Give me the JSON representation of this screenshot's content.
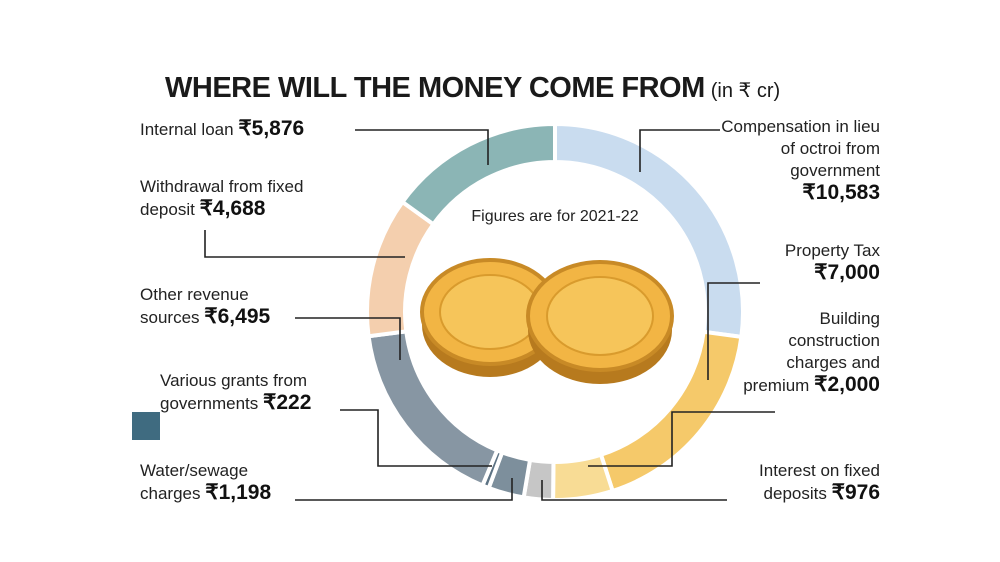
{
  "chart_data": {
    "type": "donut",
    "title": "WHERE WILL THE MONEY COME FROM",
    "subtitle": "(in ₹ cr)",
    "annotation": "Figures are for 2021-22",
    "categories": [
      "Compensation in lieu of octroi from government",
      "Property Tax",
      "Building construction charges and premium",
      "Interest on fixed deposits",
      "Water/sewage charges",
      "Various grants from governments",
      "Other revenue sources",
      "Withdrawal from fixed deposit",
      "Internal loan"
    ],
    "values": [
      10583,
      7000,
      2000,
      976,
      1198,
      222,
      6495,
      4688,
      5876
    ],
    "value_labels": [
      "₹10,583",
      "₹7,000",
      "₹2,000",
      "₹976",
      "₹1,198",
      "₹222",
      "₹6,495",
      "₹4,688",
      "₹5,876"
    ],
    "colors": [
      "#c9dcef",
      "#f5c96a",
      "#f8dc95",
      "#c6c6c6",
      "#7d8f9c",
      "#5d7384",
      "#8796a3",
      "#f4cfae",
      "#8bb5b5"
    ]
  }
}
